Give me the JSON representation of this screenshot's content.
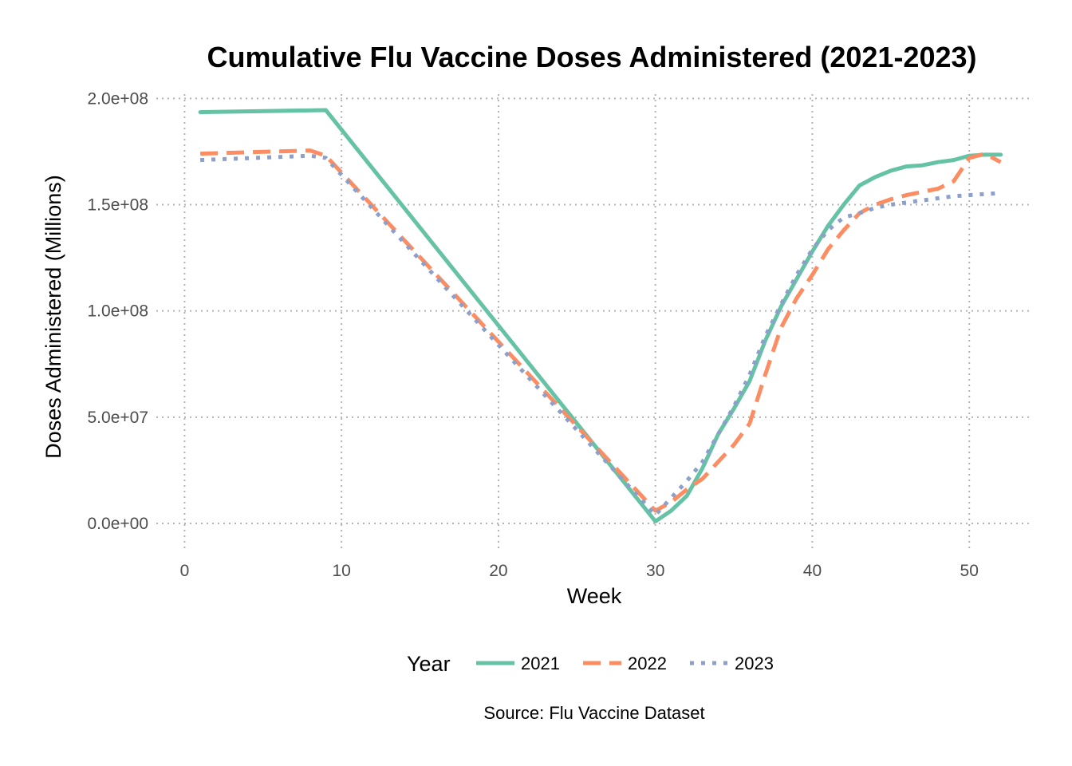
{
  "chart_data": {
    "type": "line",
    "title": "Cumulative Flu Vaccine Doses Administered (2021-2023)",
    "xlabel": "Week",
    "ylabel": "Doses Administered (Millions)",
    "caption": "Source: Flu Vaccine Dataset",
    "xlim": [
      -1.8,
      53.8
    ],
    "ylim": [
      -12000000,
      202000000
    ],
    "x_ticks": [
      0,
      10,
      20,
      30,
      40,
      50
    ],
    "x_tick_labels": [
      "0",
      "10",
      "20",
      "30",
      "40",
      "50"
    ],
    "y_ticks": [
      0,
      50000000,
      100000000,
      150000000,
      200000000
    ],
    "y_tick_labels": [
      "0.0e+00",
      "5.0e+07",
      "1.0e+08",
      "1.5e+08",
      "2.0e+08"
    ],
    "grid": true,
    "legend": {
      "title": "Year",
      "position": "bottom"
    },
    "series": [
      {
        "name": "2021",
        "color": "#66c2a5",
        "dash": "solid",
        "x": [
          1,
          9,
          30,
          31,
          32,
          33,
          34,
          35,
          36,
          37,
          38,
          39,
          40,
          41,
          42,
          43,
          44,
          45,
          46,
          47,
          48,
          49,
          50,
          51,
          52
        ],
        "values": [
          193500000,
          194500000,
          1000000,
          6000000,
          13000000,
          26000000,
          42000000,
          54000000,
          67000000,
          86000000,
          102000000,
          115000000,
          128000000,
          140000000,
          150000000,
          159000000,
          163000000,
          166000000,
          168000000,
          168500000,
          170000000,
          171000000,
          173000000,
          173500000,
          173500000
        ]
      },
      {
        "name": "2022",
        "color": "#fc8d62",
        "dash": "dashed",
        "x": [
          1,
          8,
          9,
          30,
          31,
          32,
          33,
          34,
          35,
          36,
          37,
          38,
          39,
          40,
          41,
          42,
          43,
          44,
          45,
          46,
          47,
          48,
          49,
          50,
          51,
          52
        ],
        "values": [
          174000000,
          175500000,
          173000000,
          6000000,
          10000000,
          16000000,
          21000000,
          29000000,
          37000000,
          47000000,
          70000000,
          92000000,
          106000000,
          117000000,
          129000000,
          138000000,
          146000000,
          150000000,
          152500000,
          154500000,
          156000000,
          157500000,
          161000000,
          172000000,
          174000000,
          170000000
        ]
      },
      {
        "name": "2023",
        "color": "#8da0cb",
        "dash": "dotted",
        "x": [
          1,
          8,
          9,
          30,
          31,
          32,
          33,
          34,
          35,
          36,
          37,
          38,
          39,
          40,
          41,
          42,
          43,
          44,
          45,
          46,
          47,
          48,
          49,
          50,
          51,
          52
        ],
        "values": [
          171000000,
          173000000,
          172000000,
          4000000,
          12000000,
          20000000,
          29000000,
          42000000,
          55000000,
          70000000,
          88000000,
          103000000,
          117000000,
          129000000,
          138000000,
          144000000,
          146000000,
          148500000,
          150000000,
          151000000,
          152000000,
          153000000,
          154000000,
          154500000,
          155000000,
          155500000
        ]
      }
    ]
  }
}
